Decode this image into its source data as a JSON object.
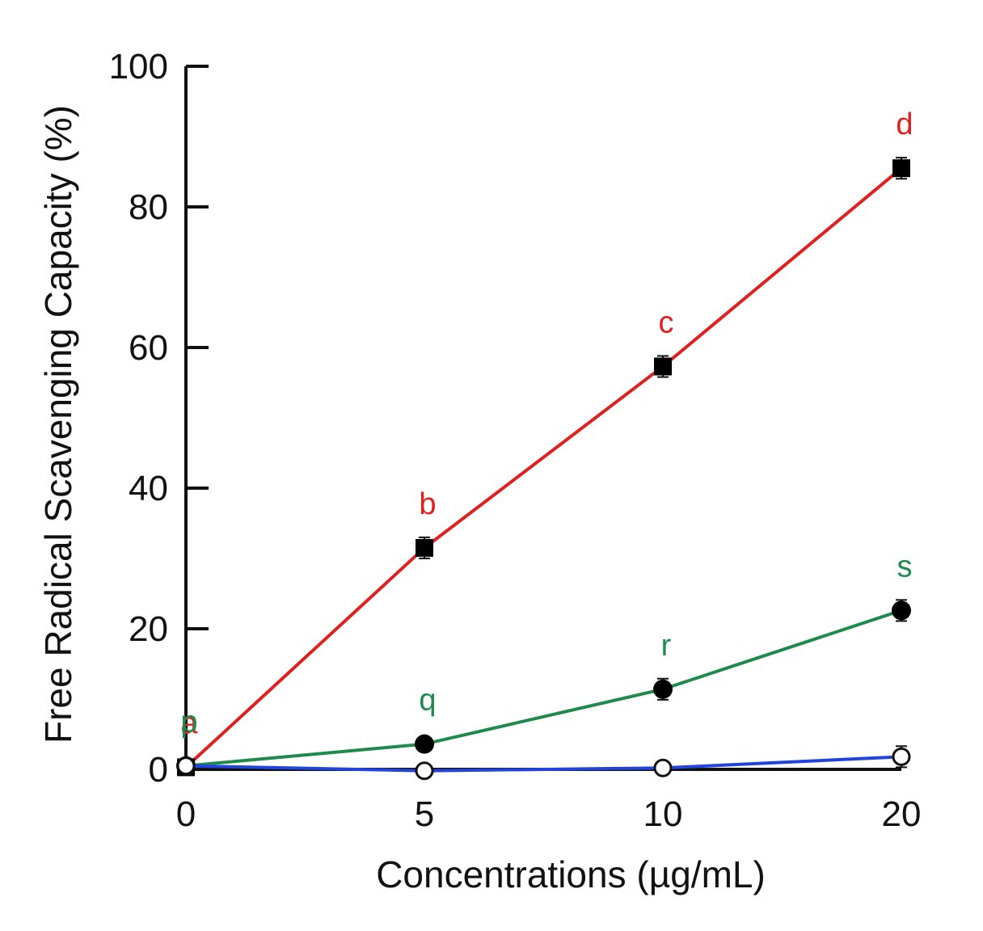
{
  "chart_data": {
    "type": "line",
    "title": "",
    "xlabel": "Concentrations (µg/mL)",
    "ylabel": "Free Radical Scavenging Capacity (%)",
    "categories": [
      "0",
      "5",
      "10",
      "20"
    ],
    "yticks": [
      "0",
      "20",
      "40",
      "60",
      "80",
      "100"
    ],
    "ylim": [
      0,
      100
    ],
    "grid": false,
    "series": [
      {
        "name": "red-series",
        "color": "#e0201e",
        "marker": "filled-square",
        "values": [
          0.3,
          31.5,
          57.3,
          85.5
        ],
        "errors": [
          0.8,
          1.5,
          1.5,
          1.5
        ],
        "labels": [
          "a",
          "b",
          "c",
          "d"
        ]
      },
      {
        "name": "green-series",
        "color": "#1f8a4c",
        "marker": "filled-circle",
        "values": [
          0.5,
          3.6,
          11.4,
          22.6
        ],
        "errors": [
          0.5,
          1.0,
          1.5,
          1.5
        ],
        "labels": [
          "p",
          "q",
          "r",
          "s"
        ]
      },
      {
        "name": "blue-series",
        "color": "#2244dd",
        "marker": "open-circle",
        "values": [
          0.5,
          -0.2,
          0.2,
          1.8
        ],
        "errors": [
          0.3,
          0.3,
          0.3,
          1.5
        ],
        "labels": []
      }
    ]
  }
}
